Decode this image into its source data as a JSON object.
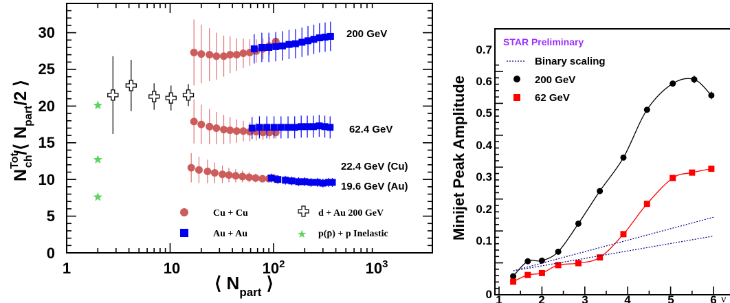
{
  "chart_data": [
    {
      "type": "scatter",
      "ylabel": "N_ch^Tot/⟨N_part/2⟩",
      "xlabel": "⟨N_part⟩",
      "xscale": "log",
      "xlim": [
        1,
        2000
      ],
      "ylim": [
        0,
        34
      ],
      "xticks": [
        "1",
        "10",
        "10^2",
        "10^3"
      ],
      "yticks": [
        "0",
        "5",
        "10",
        "15",
        "20",
        "25",
        "30"
      ],
      "annotations": [
        "200 GeV",
        "62.4 GeV",
        "22.4 GeV (Cu)",
        "19.6 GeV (Au)"
      ],
      "legend": [
        {
          "label": "Cu + Cu",
          "marker": "circle",
          "color": "#cd5c5c"
        },
        {
          "label": "Au + Au",
          "marker": "square",
          "color": "#0000ee"
        },
        {
          "label": "d + Au 200 GeV",
          "marker": "open-cross",
          "color": "#000000"
        },
        {
          "label": "p(p̄) + p  Inelastic",
          "marker": "star",
          "color": "#5fd35f"
        }
      ],
      "series": [
        {
          "name": "Cu + Cu",
          "color": "#cd5c5c",
          "marker": "circle",
          "x": [
            17,
            20,
            24,
            28,
            33,
            38,
            44,
            51,
            59,
            68,
            79,
            91,
            105,
            17,
            20,
            24,
            28,
            33,
            38,
            44,
            51,
            59,
            68,
            79,
            91,
            105,
            16,
            19,
            23,
            27,
            32,
            37,
            43,
            50,
            58,
            67,
            78,
            90,
            104
          ],
          "y": [
            27.3,
            27.1,
            27.0,
            26.8,
            26.8,
            27.0,
            27.0,
            27.2,
            27.3,
            27.5,
            27.8,
            28.2,
            28.8,
            17.9,
            17.5,
            17.2,
            17.0,
            16.8,
            16.7,
            16.6,
            16.6,
            16.5,
            16.5,
            16.4,
            16.4,
            16.4,
            11.6,
            11.3,
            11.1,
            10.9,
            10.7,
            10.6,
            10.5,
            10.4,
            10.3,
            10.2,
            10.1,
            10.1,
            10.1
          ],
          "yerr": [
            4.5,
            4.0,
            3.6,
            3.2,
            2.8,
            2.5,
            2.2,
            2.0,
            1.8,
            1.6,
            1.4,
            1.2,
            1.0,
            3.0,
            2.7,
            2.4,
            2.2,
            2.0,
            1.8,
            1.6,
            1.4,
            1.3,
            1.2,
            1.0,
            0.9,
            0.8,
            2.0,
            1.8,
            1.6,
            1.4,
            1.2,
            1.0,
            0.9,
            0.8,
            0.7,
            0.6,
            0.5,
            0.5,
            0.5
          ]
        },
        {
          "name": "Au + Au",
          "color": "#0000ee",
          "marker": "square",
          "x": [
            65,
            77,
            90,
            105,
            122,
            141,
            163,
            188,
            215,
            245,
            278,
            315,
            355,
            62,
            73,
            86,
            101,
            118,
            138,
            160,
            185,
            212,
            243,
            276,
            313,
            352,
            95,
            110,
            130,
            150,
            175,
            200,
            230,
            265,
            300,
            340,
            370
          ],
          "y": [
            27.8,
            28.0,
            28.0,
            28.1,
            28.2,
            28.4,
            28.5,
            28.7,
            28.9,
            29.1,
            29.3,
            29.4,
            29.5,
            17.0,
            17.1,
            17.1,
            17.1,
            17.1,
            17.1,
            17.1,
            17.2,
            17.2,
            17.2,
            17.3,
            17.2,
            17.1,
            10.2,
            10.0,
            9.9,
            9.8,
            9.7,
            9.7,
            9.6,
            9.6,
            9.5,
            9.6,
            9.6
          ],
          "yerr": [
            2.0,
            2.0,
            2.0,
            2.0,
            2.0,
            2.0,
            2.0,
            2.0,
            2.0,
            2.0,
            2.0,
            2.0,
            2.0,
            1.5,
            1.5,
            1.5,
            1.5,
            1.5,
            1.5,
            1.5,
            1.5,
            1.5,
            1.5,
            1.5,
            1.5,
            1.5,
            0.6,
            0.6,
            0.6,
            0.6,
            0.6,
            0.6,
            0.6,
            0.6,
            0.6,
            0.6,
            0.6
          ]
        },
        {
          "name": "d + Au 200 GeV",
          "color": "#000000",
          "marker": "open-cross",
          "x": [
            2.8,
            4.2,
            7.0,
            10.2,
            15.0
          ],
          "y": [
            21.5,
            22.8,
            21.3,
            21.1,
            21.5
          ],
          "yerr": [
            5.3,
            3.5,
            1.8,
            1.7,
            1.5
          ]
        },
        {
          "name": "p(p̄) + p  Inelastic",
          "color": "#5fd35f",
          "marker": "star",
          "x": [
            2,
            2,
            2
          ],
          "y": [
            20.1,
            12.7,
            7.6
          ],
          "yerr": [
            0,
            0,
            0
          ]
        }
      ]
    },
    {
      "type": "line",
      "ylabel": "Minijet Peak Amplitude",
      "xlabel": "ν",
      "xlim": [
        1,
        6.5
      ],
      "ylim": [
        0,
        0.75
      ],
      "xticks": [
        "1",
        "2",
        "3",
        "4",
        "5",
        "6"
      ],
      "yticks": [
        "0",
        "0.1",
        "0.2",
        "0.3",
        "0.4",
        "0.5",
        "0.6",
        "0.7"
      ],
      "annotation": "STAR Preliminary",
      "annotation_color": "#9b30ff",
      "legend": [
        {
          "label": "Binary scaling",
          "style": "dotted",
          "color": "#00008b"
        },
        {
          "label": "200 GeV",
          "marker": "circle",
          "color": "#000000"
        },
        {
          "label": "62 GeV",
          "marker": "square",
          "color": "#ff0000"
        }
      ],
      "series": [
        {
          "name": "200 GeV",
          "color": "#000000",
          "marker": "circle",
          "x": [
            1.33,
            1.67,
            2.0,
            2.38,
            2.85,
            3.35,
            3.9,
            4.45,
            5.05,
            5.55,
            5.95
          ],
          "y": [
            0.058,
            0.105,
            0.107,
            0.135,
            0.223,
            0.325,
            0.43,
            0.58,
            0.662,
            0.675,
            0.625
          ],
          "yerr": [
            0,
            0,
            0,
            0,
            0,
            0,
            0,
            0,
            0,
            0.012,
            0.012
          ]
        },
        {
          "name": "62 GeV",
          "color": "#ff0000",
          "marker": "square",
          "x": [
            1.33,
            1.67,
            2.0,
            2.38,
            2.85,
            3.35,
            3.9,
            4.45,
            5.05,
            5.5,
            5.95
          ],
          "y": [
            0.041,
            0.062,
            0.068,
            0.093,
            0.099,
            0.117,
            0.19,
            0.285,
            0.366,
            0.383,
            0.395
          ],
          "yerr": [
            0,
            0,
            0,
            0,
            0,
            0,
            0,
            0,
            0,
            0,
            0
          ]
        },
        {
          "name": "Binary scaling",
          "color": "#00008b",
          "style": "dotted",
          "x": [
            1.33,
            6.0
          ],
          "y": [
            0.075,
            0.243
          ]
        },
        {
          "name": "Binary scaling",
          "color": "#00008b",
          "style": "dotted",
          "x": [
            1.33,
            6.0
          ],
          "y": [
            0.075,
            0.184
          ]
        }
      ]
    }
  ]
}
